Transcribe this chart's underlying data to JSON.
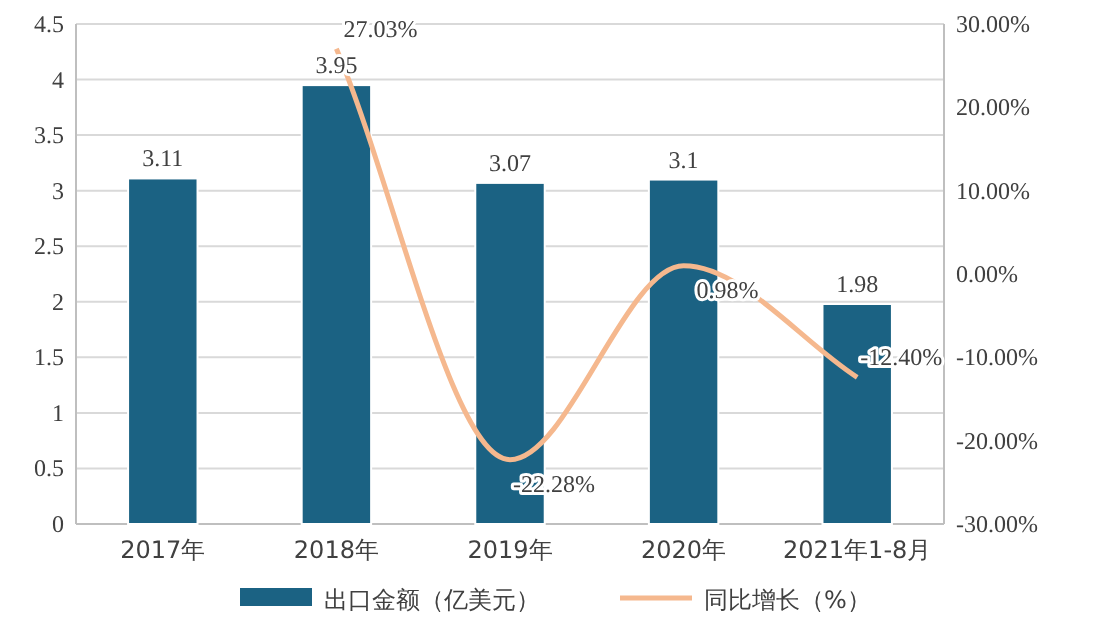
{
  "chart_data": {
    "type": "bar",
    "categories": [
      "2017年",
      "2018年",
      "2019年",
      "2020年",
      "2021年1-8月"
    ],
    "series": [
      {
        "name": "出口金额（亿美元）",
        "color": "#1b6283",
        "values": [
          3.11,
          3.95,
          3.07,
          3.1,
          1.98
        ],
        "value_labels": [
          "3.11",
          "3.95",
          "3.07",
          "3.1",
          "1.98"
        ]
      },
      {
        "name": "同比增长（%）",
        "type": "line",
        "axis": "y2",
        "color": "#f5b88e",
        "values": [
          null,
          27.03,
          -22.28,
          0.98,
          -12.4
        ],
        "value_labels": [
          null,
          "27.03%",
          "-22.28%",
          "0.98%",
          "-12.40%"
        ]
      }
    ],
    "ylim": [
      0,
      4.5
    ],
    "yticks": [
      0,
      0.5,
      1,
      1.5,
      2,
      2.5,
      3,
      3.5,
      4,
      4.5
    ],
    "y2lim": [
      -30,
      30
    ],
    "y2ticks": [
      {
        "value": -30,
        "label": "-30.00%"
      },
      {
        "value": -20,
        "label": "-20.00%"
      },
      {
        "value": -10,
        "label": "-10.00%"
      },
      {
        "value": 0,
        "label": "0.00%"
      },
      {
        "value": 10,
        "label": "10.00%"
      },
      {
        "value": 20,
        "label": "20.00%"
      },
      {
        "value": 30,
        "label": "30.00%"
      }
    ],
    "grid": "y",
    "legend": "bottom",
    "marker": "none"
  }
}
